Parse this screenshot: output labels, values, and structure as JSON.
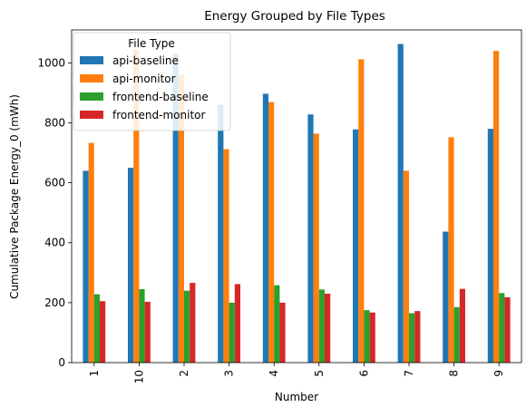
{
  "chart_data": {
    "type": "bar",
    "title": "Energy Grouped by File Types",
    "xlabel": "Number",
    "ylabel": "Cumulative Package Energy_0 (mWh)",
    "categories": [
      "1",
      "10",
      "2",
      "3",
      "4",
      "5",
      "6",
      "7",
      "8",
      "9"
    ],
    "ylim": [
      0,
      1110
    ],
    "yticks": [
      0,
      200,
      400,
      600,
      800,
      1000
    ],
    "grid": false,
    "legend": {
      "title": "File Type",
      "placement": "top-left"
    },
    "series": [
      {
        "name": "api-baseline",
        "color": "#1f77b4",
        "values": [
          640,
          650,
          1030,
          860,
          897,
          828,
          778,
          1063,
          437,
          780
        ]
      },
      {
        "name": "api-monitor",
        "color": "#ff7f0e",
        "values": [
          733,
          1045,
          960,
          712,
          869,
          764,
          1012,
          640,
          752,
          1040
        ]
      },
      {
        "name": "frontend-baseline",
        "color": "#2ca02c",
        "values": [
          228,
          245,
          240,
          200,
          258,
          244,
          175,
          165,
          185,
          232
        ]
      },
      {
        "name": "frontend-monitor",
        "color": "#d62728",
        "values": [
          205,
          203,
          266,
          262,
          200,
          230,
          167,
          172,
          246,
          218
        ]
      }
    ]
  }
}
